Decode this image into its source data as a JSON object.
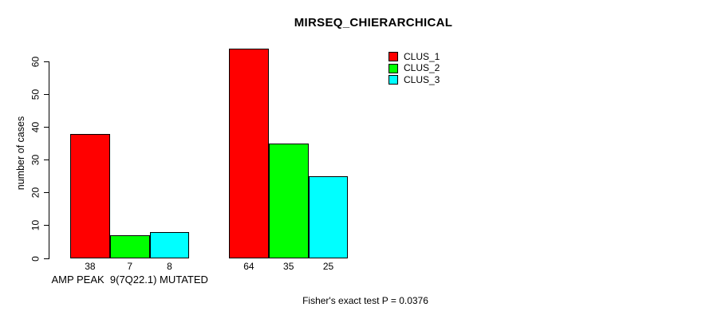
{
  "title": "MIRSEQ_CHIERARCHICAL",
  "footer": "Fisher's exact test P = 0.0376",
  "chart_data": {
    "type": "bar",
    "title": "MIRSEQ_CHIERARCHICAL",
    "xlabel": "",
    "ylabel": "number of cases",
    "ylim": [
      0,
      64
    ],
    "yticks": [
      0,
      10,
      20,
      30,
      40,
      50,
      60
    ],
    "grid": false,
    "legend_position": "top-right",
    "categories": [
      "AMP PEAK  9(7Q22.1) MUTATED",
      ""
    ],
    "series": [
      {
        "name": "CLUS_1",
        "color": "#ff0000",
        "values": [
          38,
          64
        ]
      },
      {
        "name": "CLUS_2",
        "color": "#00ff00",
        "values": [
          7,
          35
        ]
      },
      {
        "name": "CLUS_3",
        "color": "#00ffff",
        "values": [
          8,
          25
        ]
      }
    ],
    "bar_value_labels": [
      [
        38,
        7,
        8
      ],
      [
        64,
        35,
        25
      ]
    ],
    "annotation": "Fisher's exact test P = 0.0376"
  }
}
